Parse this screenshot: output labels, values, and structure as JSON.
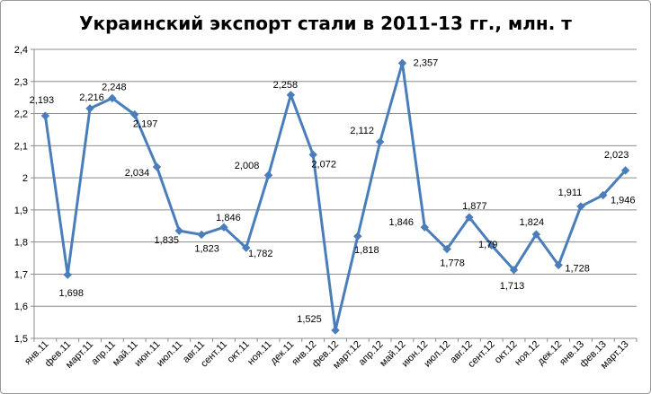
{
  "chart_data": {
    "type": "line",
    "title": "Украинский экспорт стали в 2011-13 гг., млн. т",
    "categories": [
      "янв.11",
      "фев.11",
      "март.11",
      "апр.11",
      "май.11",
      "июн.11",
      "июл.11",
      "авг.11",
      "сент.11",
      "окт.11",
      "ноя.11",
      "дек.11",
      "янв.12",
      "фев.12",
      "март.12",
      "апр.12",
      "май.12",
      "июн.12",
      "июл.12",
      "авг.12",
      "сент.12",
      "окт.12",
      "ноя.12",
      "дек.12",
      "янв.13",
      "фев.13",
      "март.13"
    ],
    "series": [
      {
        "values": [
          2.193,
          1.698,
          2.216,
          2.248,
          2.197,
          2.034,
          1.835,
          1.823,
          1.846,
          1.782,
          2.008,
          2.258,
          2.072,
          1.525,
          1.818,
          2.112,
          2.357,
          1.846,
          1.778,
          1.877,
          1.79,
          1.713,
          1.824,
          1.728,
          1.911,
          1.946,
          2.023
        ],
        "labels": [
          "2,193",
          "1,698",
          "2,216",
          "2,248",
          "2,197",
          "2,034",
          "1,835",
          "1,823",
          "1,846",
          "1,782",
          "2,008",
          "2,258",
          "2,072",
          "1,525",
          "1,818",
          "2,112",
          "2,357",
          "1,846",
          "1,778",
          "1,877",
          "1,79",
          "1,713",
          "1,824",
          "1,728",
          "1,911",
          "1,946",
          "2,023"
        ],
        "color": "#4a7ebb"
      }
    ],
    "ylim": [
      1.5,
      2.4
    ],
    "yticks": [
      1.5,
      1.6,
      1.7,
      1.8,
      1.9,
      2.0,
      2.1,
      2.2,
      2.3,
      2.4
    ],
    "ytick_labels": [
      "1,5",
      "1,6",
      "1,7",
      "1,8",
      "1,9",
      "2",
      "2,1",
      "2,2",
      "2,3",
      "2,4"
    ],
    "grid": true,
    "xlabel": "",
    "ylabel": ""
  }
}
